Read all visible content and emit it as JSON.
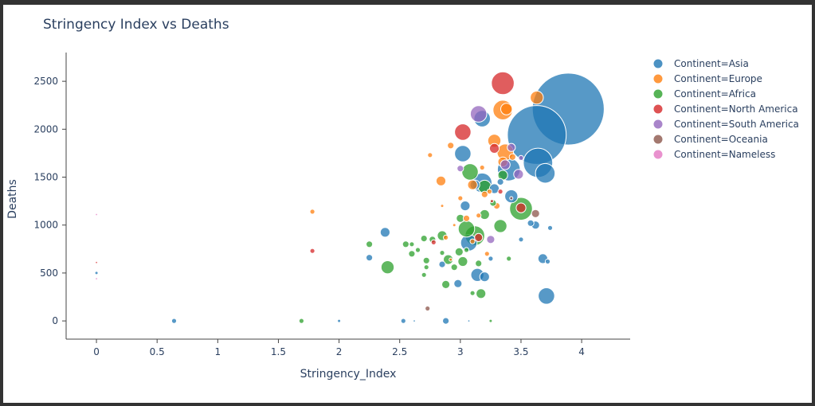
{
  "chart_data": {
    "type": "scatter",
    "title": "Stringency Index vs Deaths",
    "xlabel": "Stringency_Index",
    "ylabel": "Deaths",
    "xlim": [
      -0.25,
      4.4
    ],
    "ylim": [
      -190,
      2800
    ],
    "xticks": [
      "0",
      "0.5",
      "1",
      "1.5",
      "2",
      "2.5",
      "3",
      "3.5",
      "4"
    ],
    "yticks": [
      "0",
      "500",
      "1000",
      "1500",
      "2000",
      "2500"
    ],
    "grid": false,
    "legend_position": "right",
    "series": [
      {
        "name": "Continent=Asia",
        "color": "#1f77b4",
        "points": [
          [
            3.89,
            2210,
            22
          ],
          [
            3.63,
            1940,
            18
          ],
          [
            3.64,
            1650,
            9
          ],
          [
            3.7,
            1540,
            6
          ],
          [
            3.02,
            1745,
            5
          ],
          [
            3.18,
            2110,
            5
          ],
          [
            3.4,
            1580,
            7
          ],
          [
            3.18,
            1440,
            6
          ],
          [
            3.71,
            260,
            5
          ],
          [
            3.14,
            480,
            4
          ],
          [
            3.07,
            815,
            5
          ],
          [
            3.42,
            1300,
            4
          ],
          [
            2.38,
            925,
            3
          ],
          [
            2.0,
            0,
            1
          ],
          [
            0.64,
            0,
            1.5
          ],
          [
            2.88,
            0,
            2
          ],
          [
            3.68,
            650,
            3
          ],
          [
            3.2,
            460,
            3
          ],
          [
            2.98,
            390,
            2.5
          ],
          [
            3.62,
            1000,
            2.5
          ],
          [
            3.12,
            1420,
            3
          ],
          [
            3.04,
            1200,
            3
          ],
          [
            3.28,
            1380,
            3
          ],
          [
            2.25,
            660,
            2
          ],
          [
            2.85,
            590,
            2
          ],
          [
            3.58,
            1020,
            2
          ],
          [
            3.72,
            620,
            1.5
          ],
          [
            3.25,
            650,
            1.5
          ],
          [
            2.53,
            0,
            1.5
          ],
          [
            0,
            500,
            1
          ],
          [
            3.33,
            1450,
            2
          ],
          [
            3.5,
            850,
            1.5
          ],
          [
            3.74,
            970,
            1.5
          ],
          [
            2.62,
            0,
            0.5
          ],
          [
            3.07,
            0,
            0.5
          ]
        ]
      },
      {
        "name": "Continent=Europe",
        "color": "#ff7f0e",
        "points": [
          [
            3.35,
            2200,
            6
          ],
          [
            3.63,
            2330,
            4
          ],
          [
            3.37,
            1760,
            5
          ],
          [
            3.28,
            1880,
            4
          ],
          [
            3.1,
            1420,
            3
          ],
          [
            2.84,
            1460,
            3
          ],
          [
            3.3,
            1200,
            2
          ],
          [
            3.2,
            1320,
            2
          ],
          [
            2.92,
            1830,
            2
          ],
          [
            2.75,
            1730,
            1.5
          ],
          [
            1.78,
            1140,
            1.5
          ],
          [
            3.35,
            1660,
            3
          ],
          [
            3.05,
            1070,
            2
          ],
          [
            3.24,
            1350,
            1.5
          ],
          [
            3.15,
            1100,
            1.5
          ],
          [
            2.85,
            1200,
            1
          ],
          [
            3.0,
            1280,
            1.5
          ],
          [
            2.95,
            1000,
            1
          ],
          [
            3.43,
            1710,
            2
          ],
          [
            3.18,
            1600,
            1.5
          ],
          [
            3.1,
            830,
            1.5
          ],
          [
            2.88,
            870,
            1.5
          ],
          [
            3.22,
            700,
            1.5
          ],
          [
            2.92,
            640,
            1
          ],
          [
            3.38,
            2210,
            3.5
          ]
        ]
      },
      {
        "name": "Continent=Africa",
        "color": "#2ca02c",
        "points": [
          [
            3.5,
            1170,
            7
          ],
          [
            3.08,
            1555,
            5
          ],
          [
            3.12,
            890,
            6
          ],
          [
            2.4,
            560,
            4
          ],
          [
            3.17,
            285,
            3
          ],
          [
            3.33,
            990,
            4
          ],
          [
            3.2,
            1110,
            3
          ],
          [
            3.05,
            960,
            5
          ],
          [
            3.35,
            1520,
            3
          ],
          [
            2.25,
            800,
            2
          ],
          [
            2.55,
            800,
            2
          ],
          [
            2.7,
            860,
            2
          ],
          [
            2.85,
            890,
            3
          ],
          [
            2.9,
            640,
            3
          ],
          [
            2.77,
            850,
            2
          ],
          [
            2.6,
            700,
            2
          ],
          [
            2.72,
            630,
            2
          ],
          [
            3.02,
            620,
            3
          ],
          [
            2.88,
            380,
            2.5
          ],
          [
            3.0,
            1070,
            2.5
          ],
          [
            1.69,
            0,
            1.5
          ],
          [
            3.25,
            0,
            1
          ],
          [
            2.65,
            740,
            1.5
          ],
          [
            3.15,
            600,
            2
          ],
          [
            3.1,
            290,
            1.5
          ],
          [
            3.4,
            650,
            1.5
          ],
          [
            2.95,
            560,
            2
          ],
          [
            3.2,
            1400,
            4
          ],
          [
            2.85,
            710,
            1.5
          ],
          [
            2.7,
            480,
            1.5
          ],
          [
            3.05,
            740,
            1.5
          ],
          [
            2.6,
            800,
            1.5
          ],
          [
            3.27,
            1230,
            2
          ],
          [
            2.99,
            720,
            2.5
          ],
          [
            2.72,
            560,
            1.5
          ]
        ]
      },
      {
        "name": "Continent=North America",
        "color": "#d62728",
        "points": [
          [
            3.35,
            2480,
            7
          ],
          [
            3.02,
            1970,
            5
          ],
          [
            3.28,
            1800,
            3
          ],
          [
            3.5,
            1180,
            3
          ],
          [
            1.78,
            730,
            1.5
          ],
          [
            3.15,
            870,
            2.5
          ],
          [
            3.33,
            1350,
            1.5
          ],
          [
            2.78,
            820,
            1.5
          ],
          [
            0,
            610,
            0.5
          ],
          [
            3.26,
            1250,
            1
          ]
        ]
      },
      {
        "name": "Continent=South America",
        "color": "#9467bd",
        "points": [
          [
            3.15,
            2160,
            5
          ],
          [
            3.37,
            1630,
            3
          ],
          [
            3.48,
            1530,
            3
          ],
          [
            3.42,
            1810,
            2.5
          ],
          [
            3.0,
            1590,
            2
          ],
          [
            3.25,
            850,
            2.5
          ],
          [
            3.5,
            1700,
            1.5
          ]
        ]
      },
      {
        "name": "Continent=Oceania",
        "color": "#8c564b",
        "points": [
          [
            3.62,
            1120,
            2.5
          ],
          [
            2.73,
            130,
            1.5
          ],
          [
            3.42,
            1280,
            1
          ]
        ]
      },
      {
        "name": "Continent=Nameless",
        "color": "#e377c2",
        "points": [
          [
            0,
            1110,
            0.5
          ],
          [
            0,
            440,
            0.5
          ]
        ]
      }
    ]
  }
}
